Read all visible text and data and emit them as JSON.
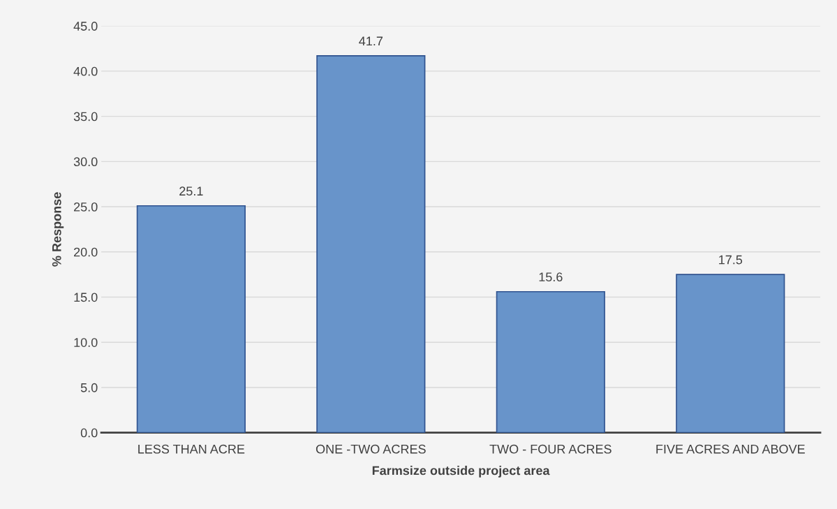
{
  "chart_data": {
    "type": "bar",
    "xlabel": "Farmsize outside project area",
    "ylabel": "% Response",
    "categories": [
      "LESS THAN ACRE",
      "ONE -TWO ACRES",
      "TWO - FOUR ACRES",
      "FIVE ACRES AND ABOVE"
    ],
    "values": [
      25.1,
      41.7,
      15.6,
      17.5
    ],
    "color": "#6894ca",
    "ylim": [
      0,
      45
    ],
    "yticks": [
      {
        "value": 0,
        "label": "0.0"
      },
      {
        "value": 5,
        "label": "5.0"
      },
      {
        "value": 10,
        "label": "10.0"
      },
      {
        "value": 15,
        "label": "15.0"
      },
      {
        "value": 20,
        "label": "20.0"
      },
      {
        "value": 25,
        "label": "25.0"
      },
      {
        "value": 30,
        "label": "30.0"
      },
      {
        "value": 35,
        "label": "35.0"
      },
      {
        "value": 40,
        "label": "40.0"
      },
      {
        "value": 45,
        "label": "45.0"
      }
    ],
    "grid": "y",
    "data_labels": true
  }
}
